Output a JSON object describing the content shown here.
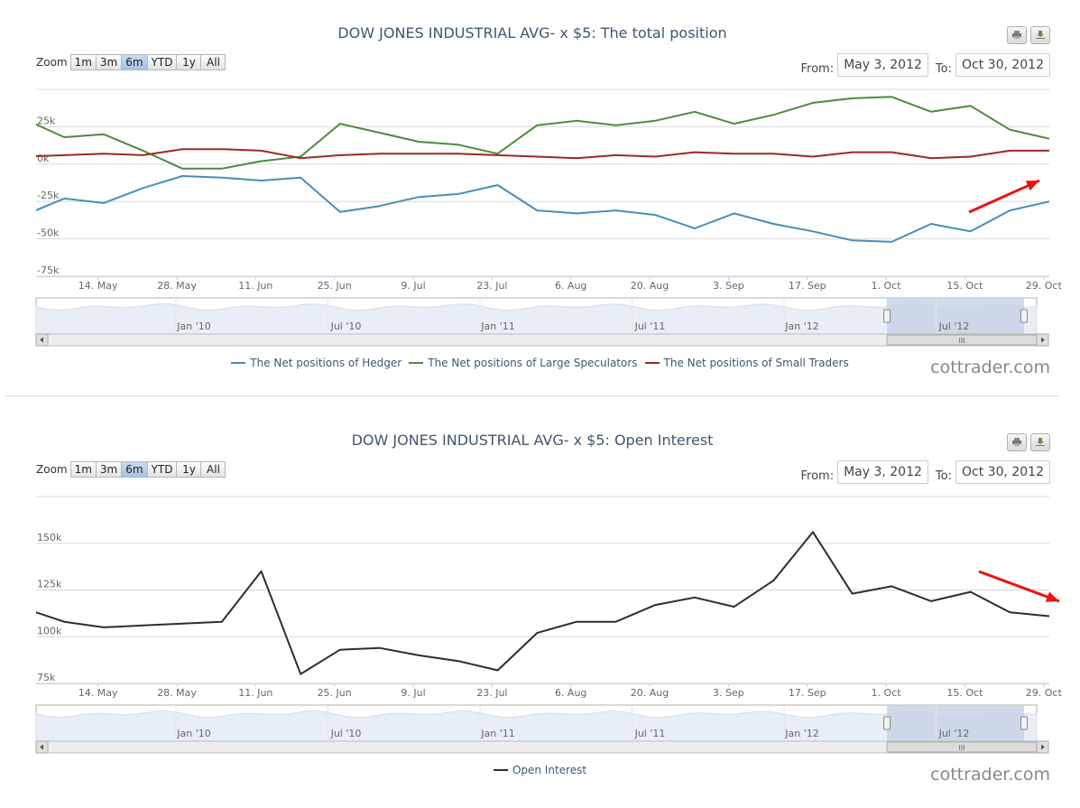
{
  "colors": {
    "hedger": "#4a8db6",
    "large_spec": "#4c8c3c",
    "small_traders": "#9c2a22",
    "open_interest": "#2d2d2d",
    "arrow": "#ee1111",
    "grid": "#d8d8d8",
    "axis_text": "#666666",
    "navigator_fill": "#c7d3e6"
  },
  "top": {
    "title": "DOW JONES INDUSTRIAL AVG- x $5: The total position",
    "zoom_label": "Zoom",
    "zoom_buttons": [
      {
        "label": "1m",
        "active": false
      },
      {
        "label": "3m",
        "active": false
      },
      {
        "label": "6m",
        "active": true
      },
      {
        "label": "YTD",
        "active": false
      },
      {
        "label": "1y",
        "active": false
      },
      {
        "label": "All",
        "active": false
      }
    ],
    "from_label": "From:",
    "from_value": "May 3, 2012",
    "to_label": "To:",
    "to_value": "Oct 30, 2012",
    "print_icon": "printer-icon",
    "download_icon": "download-icon",
    "legend": [
      "The Net positions of Hedger",
      "The Net positions of Large Speculators",
      "The Net positions of Small Traders"
    ],
    "watermark": "cottrader.com",
    "scrollbar_grip": "III"
  },
  "bottom": {
    "title": "DOW JONES INDUSTRIAL AVG- x $5: Open Interest",
    "zoom_label": "Zoom",
    "zoom_buttons": [
      {
        "label": "1m",
        "active": false
      },
      {
        "label": "3m",
        "active": false
      },
      {
        "label": "6m",
        "active": true
      },
      {
        "label": "YTD",
        "active": false
      },
      {
        "label": "1y",
        "active": false
      },
      {
        "label": "All",
        "active": false
      }
    ],
    "from_label": "From:",
    "from_value": "May 3, 2012",
    "to_label": "To:",
    "to_value": "Oct 30, 2012",
    "print_icon": "printer-icon",
    "download_icon": "download-icon",
    "legend": [
      "Open Interest"
    ],
    "watermark": "cottrader.com",
    "scrollbar_grip": "III"
  },
  "chart_data": [
    {
      "type": "line",
      "title": "DOW JONES INDUSTRIAL AVG- x $5: The total position",
      "x_tick_labels": [
        "14. May",
        "28. May",
        "11. Jun",
        "25. Jun",
        "9. Jul",
        "23. Jul",
        "6. Aug",
        "20. Aug",
        "3. Sep",
        "17. Sep",
        "1. Oct",
        "15. Oct",
        "29. Oct"
      ],
      "x_range": [
        "2012-05-03",
        "2012-10-30"
      ],
      "y_tick_labels": [
        "-75k",
        "-50k",
        "-25k",
        "0k",
        "25k"
      ],
      "ylim": [
        -75000,
        50000
      ],
      "grid": true,
      "legend_position": "bottom",
      "navigator_labels": [
        "Jan '10",
        "Jul '10",
        "Jan '11",
        "Jul '11",
        "Jan '12",
        "Jul '12"
      ],
      "x": [
        "2012-05-01",
        "2012-05-08",
        "2012-05-15",
        "2012-05-22",
        "2012-05-29",
        "2012-06-05",
        "2012-06-12",
        "2012-06-19",
        "2012-06-26",
        "2012-07-03",
        "2012-07-10",
        "2012-07-17",
        "2012-07-24",
        "2012-07-31",
        "2012-08-07",
        "2012-08-14",
        "2012-08-21",
        "2012-08-28",
        "2012-09-04",
        "2012-09-11",
        "2012-09-18",
        "2012-09-25",
        "2012-10-02",
        "2012-10-09",
        "2012-10-16",
        "2012-10-23",
        "2012-10-30"
      ],
      "series": [
        {
          "name": "The Net positions of Hedger",
          "color": "#4a8db6",
          "values": [
            -34000,
            -23000,
            -26000,
            -16000,
            -8000,
            -9000,
            -11000,
            -9000,
            -32000,
            -28000,
            -22000,
            -20000,
            -14000,
            -31000,
            -33000,
            -31000,
            -34000,
            -43000,
            -33000,
            -40000,
            -45000,
            -51000,
            -52000,
            -40000,
            -45000,
            -31000,
            -25000
          ]
        },
        {
          "name": "The Net positions of Large Speculators",
          "color": "#4c8c3c",
          "values": [
            30000,
            18000,
            20000,
            9000,
            -3000,
            -3000,
            2000,
            5000,
            27000,
            21000,
            15000,
            13000,
            7000,
            26000,
            29000,
            26000,
            29000,
            35000,
            27000,
            33000,
            41000,
            44000,
            45000,
            35000,
            39000,
            23000,
            17000
          ]
        },
        {
          "name": "The Net positions of Small Traders",
          "color": "#9c2a22",
          "values": [
            5000,
            6000,
            7000,
            6000,
            10000,
            10000,
            9000,
            4000,
            6000,
            7000,
            7000,
            7000,
            6000,
            5000,
            4000,
            6000,
            5000,
            8000,
            7000,
            7000,
            5000,
            8000,
            8000,
            4000,
            5000,
            9000,
            9000
          ]
        }
      ]
    },
    {
      "type": "line",
      "title": "DOW JONES INDUSTRIAL AVG- x $5: Open Interest",
      "x_tick_labels": [
        "14. May",
        "28. May",
        "11. Jun",
        "25. Jun",
        "9. Jul",
        "23. Jul",
        "6. Aug",
        "20. Aug",
        "3. Sep",
        "17. Sep",
        "1. Oct",
        "15. Oct",
        "29. Oct"
      ],
      "x_range": [
        "2012-05-03",
        "2012-10-30"
      ],
      "y_tick_labels": [
        "75k",
        "100k",
        "125k",
        "150k"
      ],
      "ylim": [
        75000,
        175000
      ],
      "grid": true,
      "legend_position": "bottom",
      "navigator_labels": [
        "Jan '10",
        "Jul '10",
        "Jan '11",
        "Jul '11",
        "Jan '12",
        "Jul '12"
      ],
      "x": [
        "2012-05-01",
        "2012-05-08",
        "2012-05-15",
        "2012-05-22",
        "2012-05-29",
        "2012-06-05",
        "2012-06-12",
        "2012-06-19",
        "2012-06-26",
        "2012-07-03",
        "2012-07-10",
        "2012-07-17",
        "2012-07-24",
        "2012-07-31",
        "2012-08-07",
        "2012-08-14",
        "2012-08-21",
        "2012-08-28",
        "2012-09-04",
        "2012-09-11",
        "2012-09-18",
        "2012-09-25",
        "2012-10-02",
        "2012-10-09",
        "2012-10-16",
        "2012-10-23",
        "2012-10-30"
      ],
      "series": [
        {
          "name": "Open Interest",
          "color": "#2d2d2d",
          "values": [
            115000,
            108000,
            105000,
            106000,
            107000,
            108000,
            135000,
            80000,
            93000,
            94000,
            90000,
            87000,
            82000,
            102000,
            108000,
            108000,
            117000,
            121000,
            116000,
            130000,
            156000,
            123000,
            127000,
            119000,
            124000,
            113000,
            111000
          ]
        }
      ]
    }
  ]
}
